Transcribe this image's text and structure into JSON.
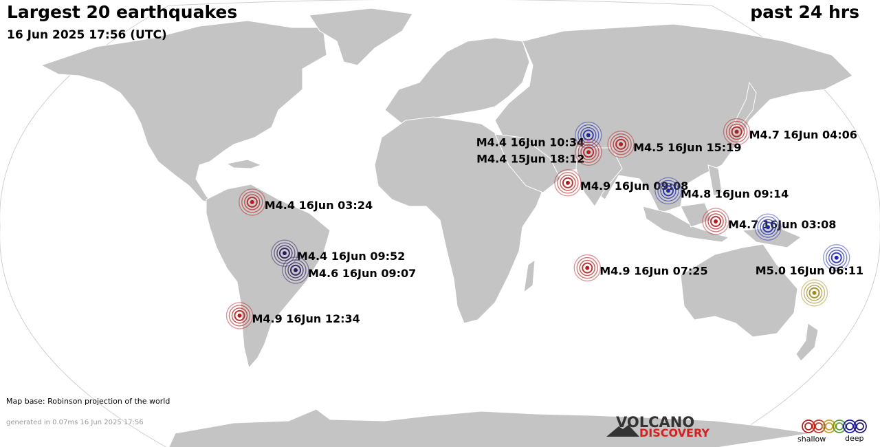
{
  "header": {
    "title": "Largest 20 earthquakes",
    "datetime": "16 Jun 2025 17:56 (UTC)",
    "period": "past 24 hrs"
  },
  "footer": {
    "map_base": "Map base: Robinson projection of the world",
    "generated": "generated in 0.07ms 16 Jun 2025 17:56"
  },
  "brand": {
    "line1": "VOLCANO",
    "line2": "DISCOVERY",
    "accent_color": "#d41f1f"
  },
  "legend": {
    "shallow_label": "shallow",
    "deep_label": "deep",
    "depth_colors": [
      "#b41e1e",
      "#c0392b",
      "#c9a227",
      "#5c9e3a",
      "#1a1aa0",
      "#2a1a6e"
    ]
  },
  "colors": {
    "land": "#c4c4c4",
    "ocean": "#ffffff",
    "border": "#ffffff",
    "shallow": "#b41e1e",
    "intermediate": "#a08a1a",
    "deep": "#1f2aa8",
    "very_deep": "#2a1a5e"
  },
  "earthquakes": [
    {
      "label": "M4.7 16Jun 04:06",
      "depth": "shallow",
      "lon": 142.0,
      "lat": 38.0
    },
    {
      "label": "M4.4 16Jun 10:34",
      "depth": "deep",
      "lon": 70.5,
      "lat": 36.5
    },
    {
      "label": "M4.5 16Jun 15:19",
      "depth": "shallow",
      "lon": 85.0,
      "lat": 32.5
    },
    {
      "label": "M4.4 15Jun 18:12",
      "depth": "shallow",
      "lon": 69.0,
      "lat": 29.0
    },
    {
      "label": "M4.9 16Jun 09:08",
      "depth": "shallow",
      "lon": 57.0,
      "lat": 15.5
    },
    {
      "label": "M4.8 16Jun 09:14",
      "depth": "deep",
      "lon": 101.0,
      "lat": 12.0
    },
    {
      "label": "M4.4 16Jun 03:24",
      "depth": "shallow",
      "lon": -82.5,
      "lat": 7.0
    },
    {
      "label": "M4.7 16Jun 03:08",
      "depth": "shallow",
      "lon": 118.5,
      "lat": -1.5
    },
    {
      "label": "M4.7 16Jun 03:08",
      "depth": "deep",
      "lon": 142.0,
      "lat": -4.0
    },
    {
      "label": "M5.0 16Jun 06:11",
      "depth": "deep",
      "lon": 178.5,
      "lat": -17.5
    },
    {
      "label": "M4.4 16Jun 09:52",
      "depth": "very_deep",
      "lon": -70.0,
      "lat": -15.5
    },
    {
      "label": "M4.6 16Jun 09:07",
      "depth": "very_deep",
      "lon": -66.5,
      "lat": -23.0
    },
    {
      "label": "M4.9 16Jun 07:25",
      "depth": "shallow",
      "lon": 67.0,
      "lat": -22.0
    },
    {
      "label": "",
      "depth": "intermediate",
      "lon": 176.5,
      "lat": -33.0
    },
    {
      "label": "M4.9 16Jun 12:34",
      "depth": "shallow",
      "lon": -98.0,
      "lat": -43.0
    }
  ]
}
